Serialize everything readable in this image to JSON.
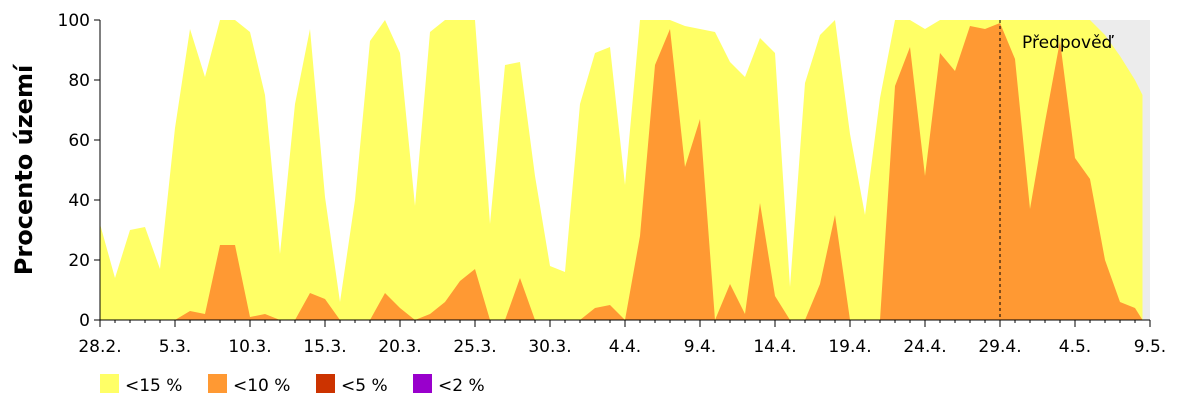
{
  "chart_data": {
    "type": "area",
    "ylabel": "Procento území",
    "ylim": [
      0,
      100
    ],
    "yticks": [
      0,
      20,
      40,
      60,
      80,
      100
    ],
    "xticks": [
      {
        "label": "28.2.",
        "day": 0
      },
      {
        "label": "5.3.",
        "day": 5
      },
      {
        "label": "10.3.",
        "day": 10
      },
      {
        "label": "15.3.",
        "day": 15
      },
      {
        "label": "20.3.",
        "day": 20
      },
      {
        "label": "25.3.",
        "day": 25
      },
      {
        "label": "30.3.",
        "day": 30
      },
      {
        "label": "4.4.",
        "day": 35
      },
      {
        "label": "9.4.",
        "day": 40
      },
      {
        "label": "14.4.",
        "day": 45
      },
      {
        "label": "19.4.",
        "day": 50
      },
      {
        "label": "24.4.",
        "day": 55
      },
      {
        "label": "29.4.",
        "day": 60
      },
      {
        "label": "4.5.",
        "day": 65
      },
      {
        "label": "9.5.",
        "day": 70
      }
    ],
    "x_range": [
      0,
      70
    ],
    "forecast": {
      "label": "Předpověď",
      "start_day": 60,
      "end_day": 70,
      "shade_color": "#ececec"
    },
    "series": [
      {
        "name": "<15 %",
        "color": "#ffff66",
        "points": [
          [
            0,
            32
          ],
          [
            1,
            14
          ],
          [
            2,
            30
          ],
          [
            3,
            31
          ],
          [
            4,
            17
          ],
          [
            5,
            64
          ],
          [
            6,
            97
          ],
          [
            7,
            81
          ],
          [
            8,
            100
          ],
          [
            9,
            100
          ],
          [
            10,
            96
          ],
          [
            11,
            75
          ],
          [
            12,
            22
          ],
          [
            13,
            72
          ],
          [
            14,
            97
          ],
          [
            15,
            41
          ],
          [
            16,
            6
          ],
          [
            17,
            40
          ],
          [
            18,
            93
          ],
          [
            19,
            100
          ],
          [
            20,
            89
          ],
          [
            21,
            38
          ],
          [
            22,
            96
          ],
          [
            23,
            100
          ],
          [
            24,
            100
          ],
          [
            25,
            100
          ],
          [
            26,
            32
          ],
          [
            27,
            85
          ],
          [
            28,
            86
          ],
          [
            29,
            48
          ],
          [
            30,
            18
          ],
          [
            31,
            16
          ],
          [
            32,
            72
          ],
          [
            33,
            89
          ],
          [
            34,
            91
          ],
          [
            35,
            45
          ],
          [
            36,
            100
          ],
          [
            37,
            100
          ],
          [
            38,
            100
          ],
          [
            39,
            98
          ],
          [
            40,
            97
          ],
          [
            41,
            96
          ],
          [
            42,
            86
          ],
          [
            43,
            81
          ],
          [
            44,
            94
          ],
          [
            45,
            89
          ],
          [
            46,
            11
          ],
          [
            47,
            79
          ],
          [
            48,
            95
          ],
          [
            49,
            100
          ],
          [
            50,
            62
          ],
          [
            51,
            35
          ],
          [
            52,
            74
          ],
          [
            53,
            100
          ],
          [
            54,
            100
          ],
          [
            55,
            97
          ],
          [
            56,
            100
          ],
          [
            57,
            100
          ],
          [
            58,
            100
          ],
          [
            59,
            100
          ],
          [
            60,
            100
          ],
          [
            61,
            100
          ],
          [
            62,
            100
          ],
          [
            63,
            100
          ],
          [
            64,
            100
          ],
          [
            65,
            100
          ],
          [
            66,
            100
          ],
          [
            67,
            95
          ],
          [
            68,
            88
          ],
          [
            69,
            80
          ],
          [
            69.5,
            75
          ]
        ]
      },
      {
        "name": "<10 %",
        "color": "#ff9933",
        "points": [
          [
            0,
            0
          ],
          [
            5,
            0
          ],
          [
            6,
            3
          ],
          [
            7,
            2
          ],
          [
            8,
            25
          ],
          [
            9,
            25
          ],
          [
            10,
            1
          ],
          [
            11,
            2
          ],
          [
            12,
            0
          ],
          [
            13,
            0
          ],
          [
            14,
            9
          ],
          [
            15,
            7
          ],
          [
            16,
            0
          ],
          [
            17,
            0
          ],
          [
            18,
            0
          ],
          [
            19,
            9
          ],
          [
            20,
            4
          ],
          [
            21,
            0
          ],
          [
            22,
            2
          ],
          [
            23,
            6
          ],
          [
            24,
            13
          ],
          [
            25,
            17
          ],
          [
            26,
            0
          ],
          [
            27,
            0
          ],
          [
            28,
            14
          ],
          [
            29,
            0
          ],
          [
            30,
            0
          ],
          [
            31,
            0
          ],
          [
            32,
            0
          ],
          [
            33,
            4
          ],
          [
            34,
            5
          ],
          [
            35,
            0
          ],
          [
            36,
            28
          ],
          [
            37,
            85
          ],
          [
            38,
            97
          ],
          [
            39,
            51
          ],
          [
            40,
            67
          ],
          [
            41,
            0
          ],
          [
            42,
            12
          ],
          [
            43,
            2
          ],
          [
            44,
            39
          ],
          [
            45,
            8
          ],
          [
            46,
            0
          ],
          [
            47,
            0
          ],
          [
            48,
            12
          ],
          [
            49,
            35
          ],
          [
            50,
            0
          ],
          [
            51,
            0
          ],
          [
            52,
            0
          ],
          [
            53,
            78
          ],
          [
            54,
            91
          ],
          [
            55,
            48
          ],
          [
            56,
            89
          ],
          [
            57,
            83
          ],
          [
            58,
            98
          ],
          [
            59,
            97
          ],
          [
            60,
            99
          ],
          [
            61,
            87
          ],
          [
            62,
            37
          ],
          [
            63,
            66
          ],
          [
            64,
            93
          ],
          [
            65,
            54
          ],
          [
            66,
            47
          ],
          [
            67,
            20
          ],
          [
            68,
            6
          ],
          [
            69,
            4
          ],
          [
            69.5,
            0
          ]
        ]
      },
      {
        "name": "<5 %",
        "color": "#cc3300",
        "points": []
      },
      {
        "name": "<2 %",
        "color": "#9900cc",
        "points": []
      }
    ]
  }
}
